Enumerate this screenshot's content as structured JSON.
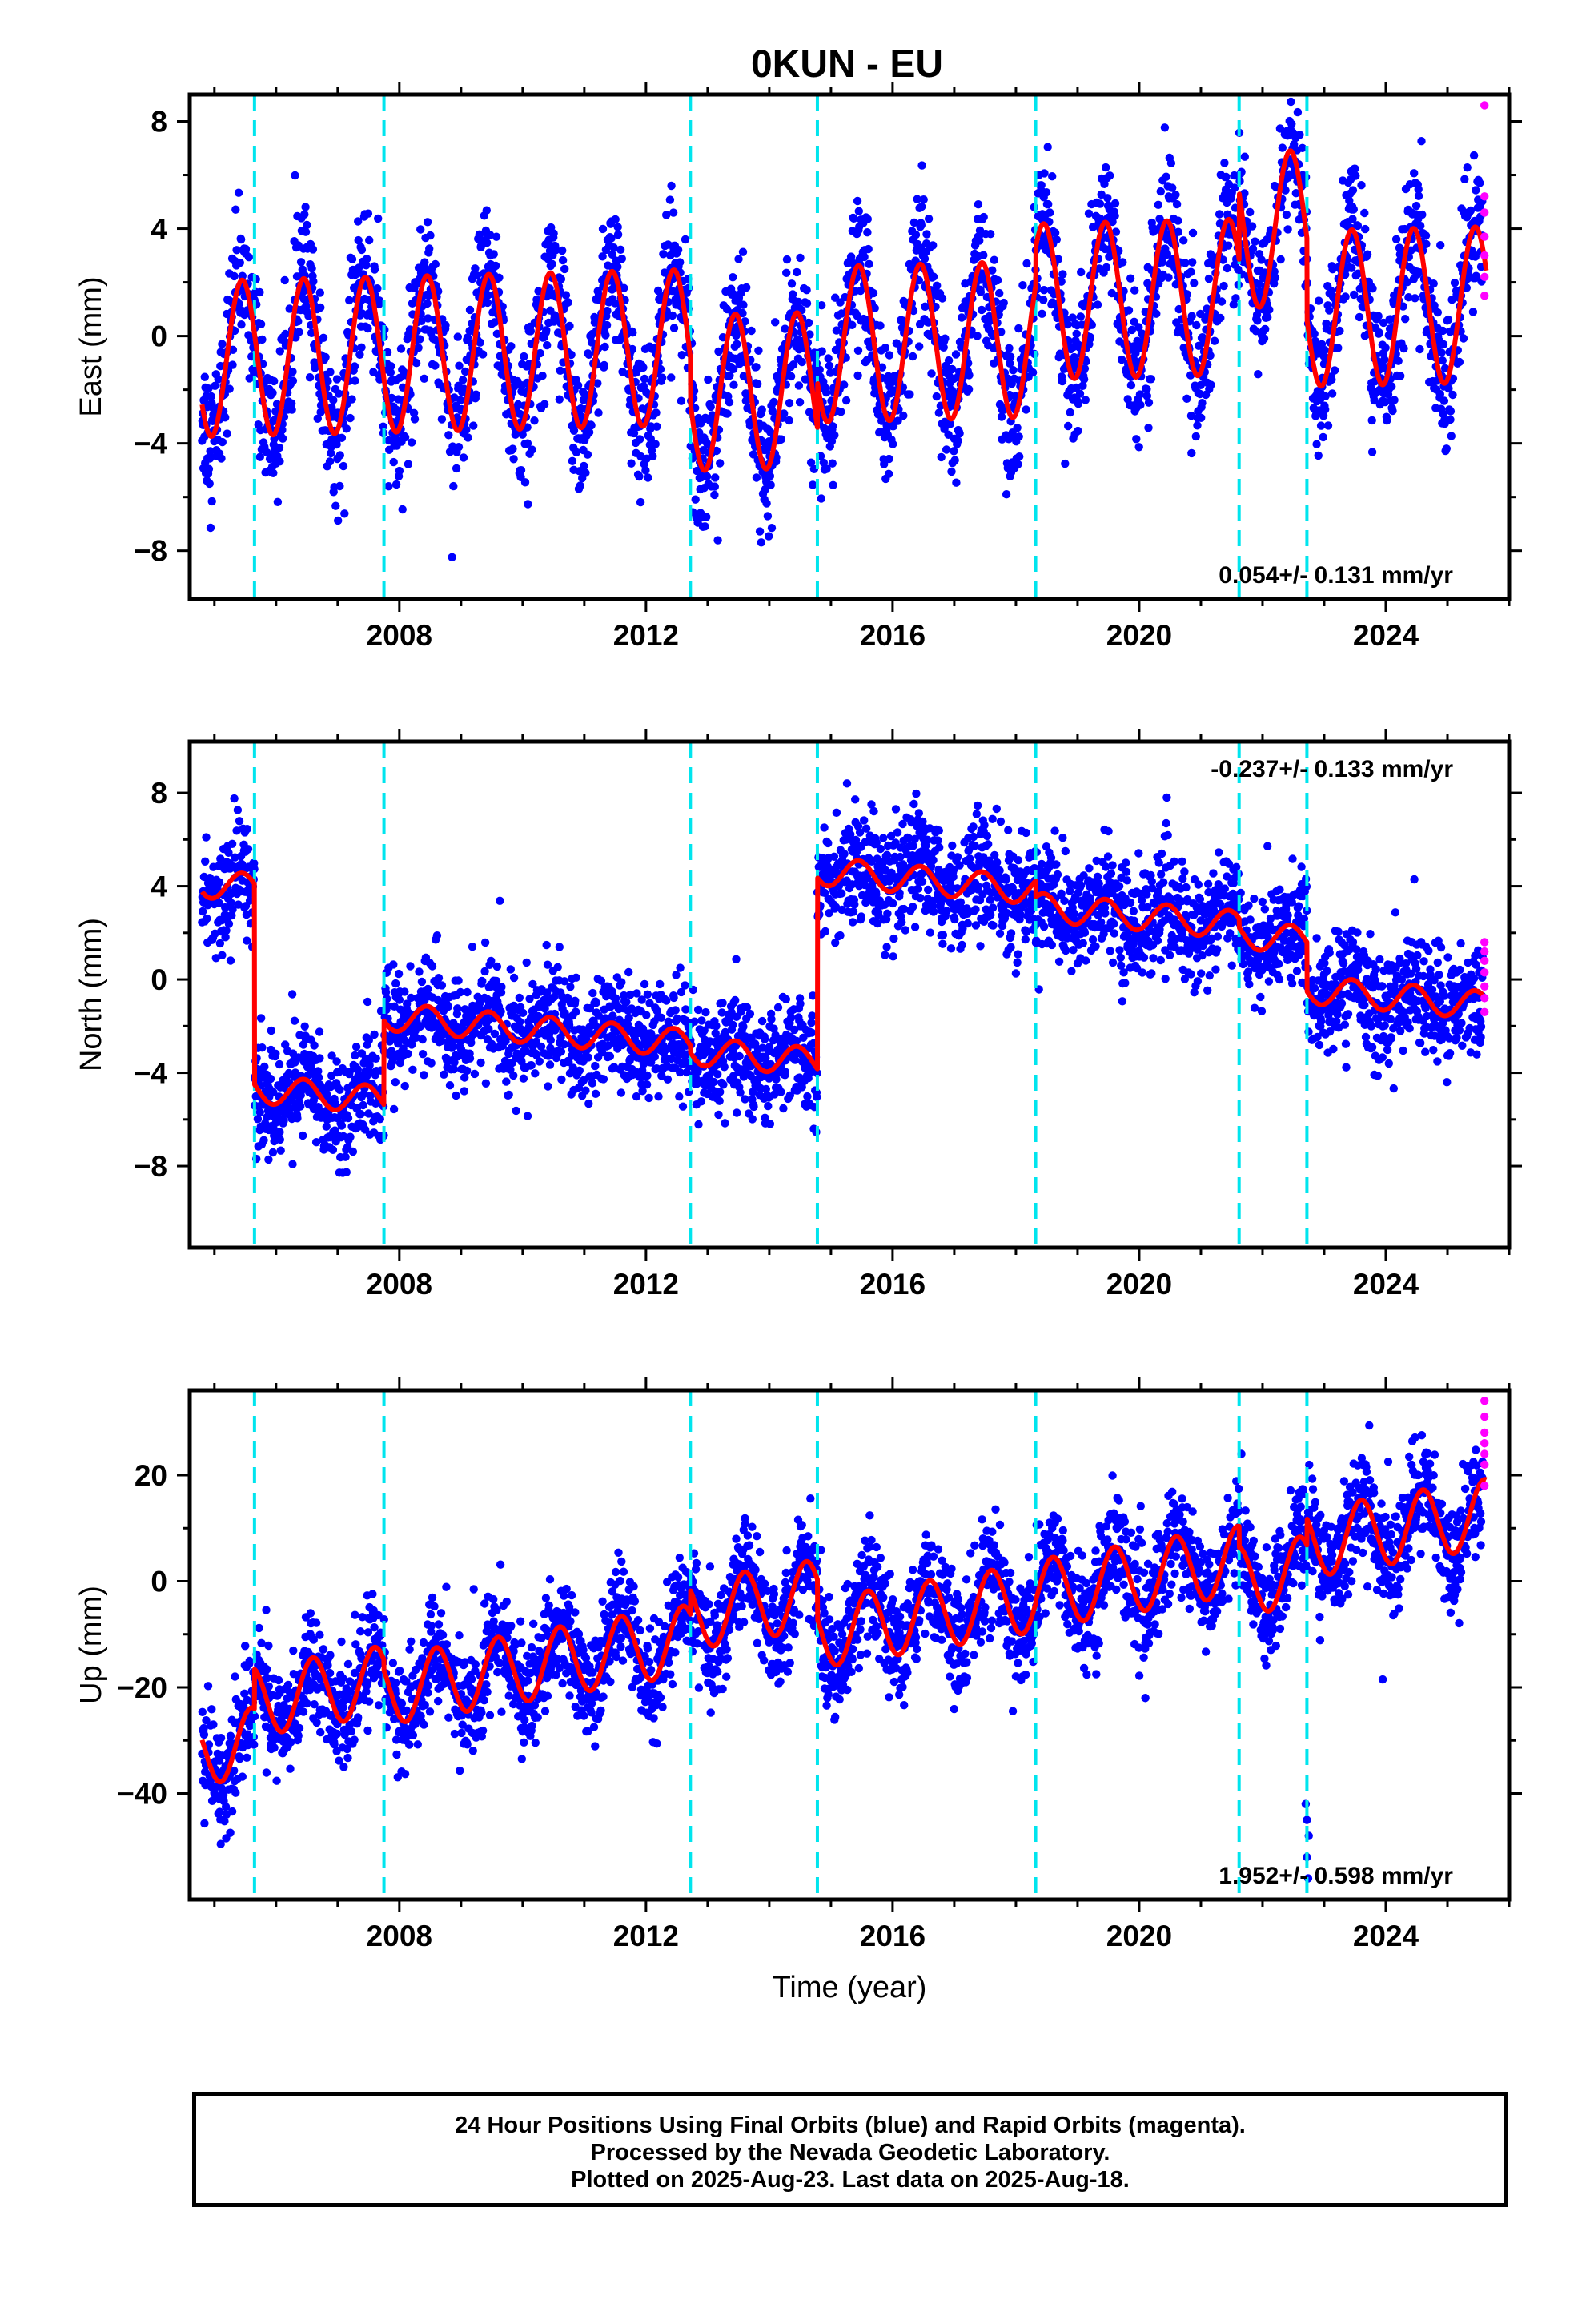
{
  "title": "0KUN - EU",
  "colors": {
    "final_orbits": "#0000ff",
    "rapid_orbits": "#ff00ff",
    "model": "#ff0000",
    "equipment_change": "#00e5ee",
    "frame": "#000000"
  },
  "footer": {
    "line1": "24 Hour Positions Using Final Orbits (blue) and Rapid Orbits (magenta).",
    "line2": "Processed by the Nevada Geodetic Laboratory.",
    "line3": "Plotted on 2025-Aug-23. Last data on 2025-Aug-18."
  },
  "chart_data": [
    {
      "type": "scatter",
      "component": "east",
      "ylabel": "East (mm)",
      "xlim": [
        2004.6,
        2026.0
      ],
      "ylim": [
        -9.8,
        9.0
      ],
      "yticks": [
        -8,
        -4,
        0,
        4,
        8
      ],
      "xticks": [
        2008,
        2012,
        2016,
        2020,
        2024
      ],
      "grid": false,
      "velocity_label": "0.054+/- 0.131 mm/yr",
      "velocity_label_position": "bottom-right",
      "vertical_markers": [
        2005.65,
        2007.75,
        2012.72,
        2014.78,
        2018.32,
        2021.62,
        2022.72
      ],
      "model": {
        "trend_mm_per_yr": 0.054,
        "annual_amplitude": 2.9,
        "annual_peak_phase": 0.45,
        "segments": [
          {
            "start": 2004.8,
            "end": 2005.65,
            "offset": -0.3
          },
          {
            "start": 2005.65,
            "end": 2007.75,
            "offset": -0.3
          },
          {
            "start": 2007.75,
            "end": 2012.72,
            "offset": -0.3
          },
          {
            "start": 2012.72,
            "end": 2014.78,
            "offset": -2.0
          },
          {
            "start": 2014.78,
            "end": 2018.32,
            "offset": -0.3
          },
          {
            "start": 2018.32,
            "end": 2021.62,
            "offset": 1.1
          },
          {
            "start": 2021.62,
            "end": 2022.72,
            "offset": 3.6
          },
          {
            "start": 2022.72,
            "end": 2025.63,
            "offset": 0.6
          }
        ]
      },
      "scatter_sigma": 1.3,
      "rapid_points": [
        [
          2025.6,
          8.6
        ],
        [
          2025.6,
          5.2
        ],
        [
          2025.6,
          4.6
        ],
        [
          2025.6,
          3.7
        ],
        [
          2025.6,
          3.0
        ],
        [
          2025.6,
          2.2
        ],
        [
          2025.6,
          1.5
        ]
      ]
    },
    {
      "type": "scatter",
      "component": "north",
      "ylabel": "North (mm)",
      "xlim": [
        2004.6,
        2026.0
      ],
      "ylim": [
        -11.5,
        10.2
      ],
      "yticks": [
        -8,
        -4,
        0,
        4,
        8
      ],
      "xticks": [
        2008,
        2012,
        2016,
        2020,
        2024
      ],
      "grid": false,
      "velocity_label": "-0.237+/- 0.133 mm/yr",
      "velocity_label_position": "top-right",
      "vertical_markers": [
        2005.65,
        2007.75,
        2012.72,
        2014.78,
        2018.32,
        2021.62,
        2022.72
      ],
      "model": {
        "trend_mm_per_yr": -0.237,
        "annual_amplitude": 0.6,
        "annual_peak_phase": 0.45,
        "segments": [
          {
            "start": 2004.8,
            "end": 2005.65,
            "offset": 1.7
          },
          {
            "start": 2005.65,
            "end": 2007.75,
            "offset": -6.9
          },
          {
            "start": 2007.75,
            "end": 2012.72,
            "offset": -3.3
          },
          {
            "start": 2012.72,
            "end": 2014.78,
            "offset": -3.6
          },
          {
            "start": 2014.78,
            "end": 2018.32,
            "offset": 4.6
          },
          {
            "start": 2018.32,
            "end": 2021.62,
            "offset": 3.9
          },
          {
            "start": 2021.62,
            "end": 2022.72,
            "offset": 3.5
          },
          {
            "start": 2022.72,
            "end": 2025.63,
            "offset": 1.4
          }
        ]
      },
      "scatter_sigma": 1.2,
      "rapid_points": [
        [
          2025.6,
          1.6
        ],
        [
          2025.6,
          1.2
        ],
        [
          2025.6,
          0.8
        ],
        [
          2025.6,
          0.3
        ],
        [
          2025.6,
          -0.3
        ],
        [
          2025.6,
          -0.8
        ],
        [
          2025.6,
          -1.4
        ]
      ]
    },
    {
      "type": "scatter",
      "component": "up",
      "ylabel": "Up (mm)",
      "xlim": [
        2004.6,
        2026.0
      ],
      "ylim": [
        -60,
        36
      ],
      "yticks": [
        -40,
        -20,
        0,
        20
      ],
      "xticks": [
        2008,
        2012,
        2016,
        2020,
        2024
      ],
      "xlabel": "Time (year)",
      "grid": false,
      "velocity_label": "1.952+/- 0.598 mm/yr",
      "velocity_label_position": "bottom-right",
      "vertical_markers": [
        2005.65,
        2007.75,
        2012.72,
        2014.78,
        2018.32,
        2021.62,
        2022.72
      ],
      "model": {
        "trend_mm_per_yr": 1.952,
        "annual_amplitude": 6.5,
        "annual_peak_phase": 0.6,
        "segments": [
          {
            "start": 2004.8,
            "end": 2005.65,
            "offset": -12.0
          },
          {
            "start": 2005.65,
            "end": 2007.75,
            "offset": -4.5
          },
          {
            "start": 2007.75,
            "end": 2012.72,
            "offset": -6.5
          },
          {
            "start": 2012.72,
            "end": 2014.78,
            "offset": -2.0
          },
          {
            "start": 2014.78,
            "end": 2018.32,
            "offset": -9.5
          },
          {
            "start": 2018.32,
            "end": 2021.62,
            "offset": -9.0
          },
          {
            "start": 2021.62,
            "end": 2022.72,
            "offset": -13.0
          },
          {
            "start": 2022.72,
            "end": 2025.63,
            "offset": -8.0
          }
        ]
      },
      "scatter_sigma": 5.0,
      "rapid_points": [
        [
          2025.6,
          34.0
        ],
        [
          2025.6,
          31.0
        ],
        [
          2025.6,
          28.0
        ],
        [
          2025.6,
          26.0
        ],
        [
          2025.6,
          24.0
        ],
        [
          2025.6,
          22.0
        ],
        [
          2025.6,
          18.0
        ]
      ],
      "outliers": [
        [
          2022.7,
          -42.0
        ],
        [
          2022.72,
          -45.0
        ],
        [
          2022.75,
          -48.0
        ],
        [
          2022.72,
          -52.0
        ],
        [
          2022.74,
          -56.0
        ],
        [
          2023.95,
          -18.5
        ],
        [
          2020.1,
          -22.0
        ]
      ]
    }
  ]
}
